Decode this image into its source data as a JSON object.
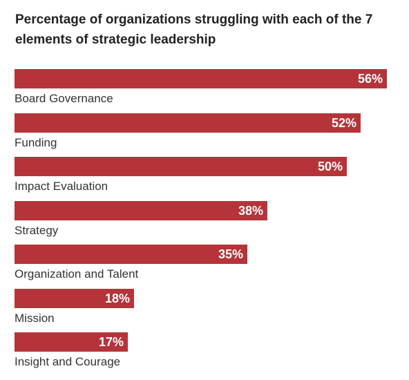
{
  "chart_data": {
    "type": "bar",
    "orientation": "horizontal",
    "title": "Percentage of organizations struggling with each of the 7 elements of strategic leadership",
    "categories": [
      "Board Governance",
      "Funding",
      "Impact Evaluation",
      "Strategy",
      "Organization and Talent",
      "Mission",
      "Insight and Courage"
    ],
    "values": [
      56,
      52,
      50,
      38,
      35,
      18,
      17
    ],
    "value_labels": [
      "56%",
      "52%",
      "50%",
      "38%",
      "35%",
      "18%",
      "17%"
    ],
    "unit": "%",
    "xlim": [
      0,
      56
    ],
    "grid": false,
    "legend": "none",
    "bar_color": "#b5343a",
    "value_label_color": "#ffffff"
  }
}
